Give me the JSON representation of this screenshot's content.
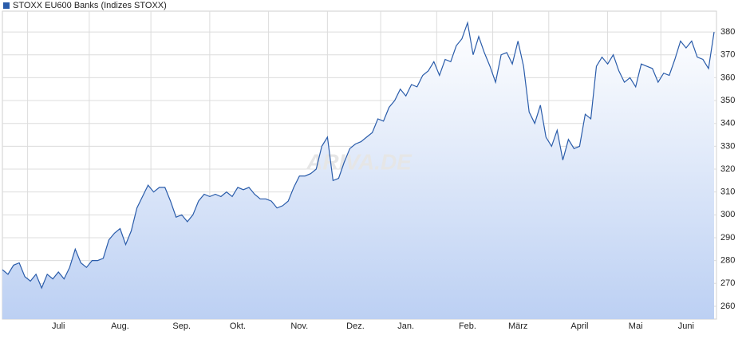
{
  "chart_data": {
    "type": "area",
    "watermark": "ARIVA.DE",
    "categories": [
      null,
      null,
      null,
      null,
      null,
      null,
      null,
      null,
      null,
      null,
      "Juli",
      null,
      null,
      null,
      null,
      null,
      null,
      null,
      null,
      null,
      null,
      "Aug.",
      null,
      null,
      null,
      null,
      null,
      null,
      null,
      null,
      null,
      null,
      "Sep.",
      null,
      null,
      null,
      null,
      null,
      null,
      null,
      null,
      null,
      "Okt.",
      null,
      null,
      null,
      null,
      null,
      null,
      null,
      null,
      null,
      null,
      "Nov.",
      null,
      null,
      null,
      null,
      null,
      null,
      null,
      null,
      null,
      "Dez.",
      null,
      null,
      null,
      null,
      null,
      null,
      null,
      null,
      "Jan.",
      null,
      null,
      null,
      null,
      null,
      null,
      null,
      null,
      null,
      null,
      "Feb.",
      null,
      null,
      null,
      null,
      null,
      null,
      null,
      null,
      "März",
      null,
      null,
      null,
      null,
      null,
      null,
      null,
      null,
      null,
      null,
      "April",
      null,
      null,
      null,
      null,
      null,
      null,
      null,
      null,
      null,
      "Mai",
      null,
      null,
      null,
      null,
      null,
      null,
      null,
      null,
      "Juni",
      null,
      null,
      null,
      null,
      null
    ],
    "series": [
      {
        "name": "STOXX EU600 Banks (Indizes STOXX)",
        "color": "#2a5caa",
        "values": [
          276,
          274,
          278,
          279,
          273,
          271,
          274,
          268,
          274,
          272,
          275,
          272,
          277,
          285,
          279,
          277,
          280,
          280,
          281,
          289,
          292,
          294,
          287,
          293,
          303,
          308,
          313,
          310,
          312,
          312,
          306,
          299,
          300,
          297,
          300,
          306,
          309,
          308,
          309,
          308,
          310,
          308,
          312,
          311,
          312,
          309,
          307,
          307,
          306,
          303,
          304,
          306,
          312,
          317,
          317,
          318,
          320,
          330,
          334,
          315,
          316,
          323,
          329,
          331,
          332,
          334,
          336,
          342,
          341,
          347,
          350,
          355,
          352,
          357,
          356,
          361,
          363,
          367,
          361,
          368,
          367,
          374,
          377,
          384,
          370,
          378,
          371,
          365,
          358,
          370,
          371,
          366,
          376,
          365,
          345,
          340,
          348,
          334,
          330,
          337,
          324,
          333,
          329,
          330,
          344,
          342,
          365,
          369,
          366,
          370,
          363,
          358,
          360,
          356,
          366,
          365,
          364,
          358,
          362,
          361,
          368,
          376,
          373,
          376,
          369,
          368,
          364,
          380
        ]
      }
    ],
    "ylim": [
      254.4,
      389.1
    ],
    "yticks": [
      260,
      270,
      280,
      290,
      300,
      310,
      320,
      330,
      340,
      350,
      360,
      370,
      380
    ],
    "grid": true
  }
}
